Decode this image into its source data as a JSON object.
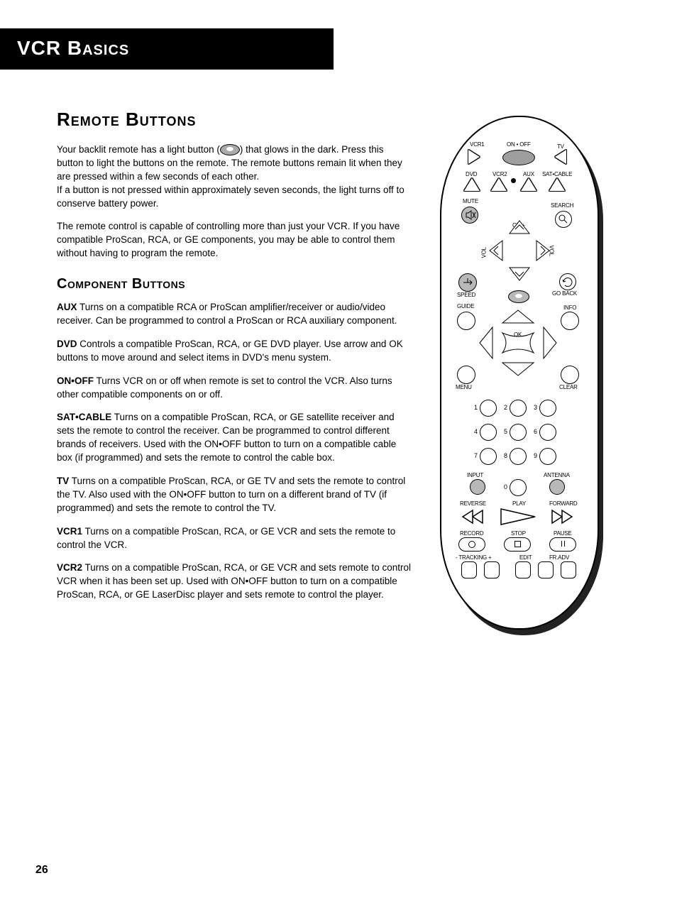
{
  "header": {
    "title": "VCR Basics"
  },
  "section": {
    "title": "Remote Buttons",
    "intro1a": "Your backlit remote has a light button (",
    "intro1b": ") that glows in the dark. Press this button to light the buttons on the remote. The remote buttons remain lit when they are pressed within a few seconds of each other.",
    "intro1c": "If a button is not pressed within approximately seven seconds, the light turns off to conserve battery power.",
    "intro2": "The remote control is capable of controlling more than just your VCR. If you have compatible ProScan, RCA, or GE components, you may be able to control them without having to program the remote."
  },
  "sub": {
    "title": "Component Buttons",
    "items": [
      {
        "name": "AUX",
        "desc": "  Turns on a compatible RCA or ProScan amplifier/receiver or audio/video receiver. Can be programmed to control a ProScan or RCA auxiliary component."
      },
      {
        "name": "DVD",
        "desc": "  Controls a compatible ProScan, RCA, or GE DVD player.  Use arrow and OK buttons to move around and select items in DVD's  menu system."
      },
      {
        "name": "ON•OFF",
        "desc": "  Turns VCR on or off when remote is set to control the VCR. Also turns other compatible components on or off."
      },
      {
        "name": "SAT•CABLE",
        "desc": "  Turns on a compatible ProScan, RCA, or GE satellite receiver and sets the remote to control the receiver. Can be programmed to control different brands of receivers. Used with the ON•OFF button to turn on a compatible cable box (if programmed) and sets the remote to control the cable box."
      },
      {
        "name": "TV",
        "desc": "  Turns on a compatible ProScan, RCA, or GE TV and sets the remote to control the TV. Also used with the ON•OFF button to turn on a different brand of TV (if programmed) and sets the remote to control the TV."
      },
      {
        "name": "VCR1",
        "desc": "  Turns on a compatible ProScan, RCA, or GE VCR and sets the remote to control the VCR."
      },
      {
        "name": "VCR2",
        "desc": "  Turns on a compatible ProScan, RCA, or GE VCR and sets remote to control VCR when it has been set up. Used with ON•OFF button to turn on a compatible ProScan, RCA, or GE LaserDisc player and sets remote to control the player."
      }
    ]
  },
  "remote": {
    "row1": {
      "vcr1": "VCR1",
      "onoff": "ON • OFF",
      "tv": "TV"
    },
    "row2": {
      "dvd": "DVD",
      "vcr2": "VCR2",
      "aux": "AUX",
      "satcable": "SAT•CABLE"
    },
    "mute": "MUTE",
    "search": "SEARCH",
    "chplus": "CH +",
    "chminus": "CH -",
    "vol_l": "VOL",
    "vol_r": "VOL",
    "speed": "SPEED",
    "goback": "GO BACK",
    "guide": "GUIDE",
    "info": "INFO",
    "ok": "OK",
    "menu": "MENU",
    "clear": "CLEAR",
    "nums": [
      "1",
      "2",
      "3",
      "4",
      "5",
      "6",
      "7",
      "8",
      "9",
      "0"
    ],
    "input": "INPUT",
    "antenna": "ANTENNA",
    "reverse": "REVERSE",
    "play": "PLAY",
    "forward": "FORWARD",
    "record": "RECORD",
    "stop": "STOP",
    "pause": "PAUSE",
    "tracking": "- TRACKING +",
    "edit": "EDIT",
    "fradv": "FR.ADV"
  },
  "page_number": "26"
}
